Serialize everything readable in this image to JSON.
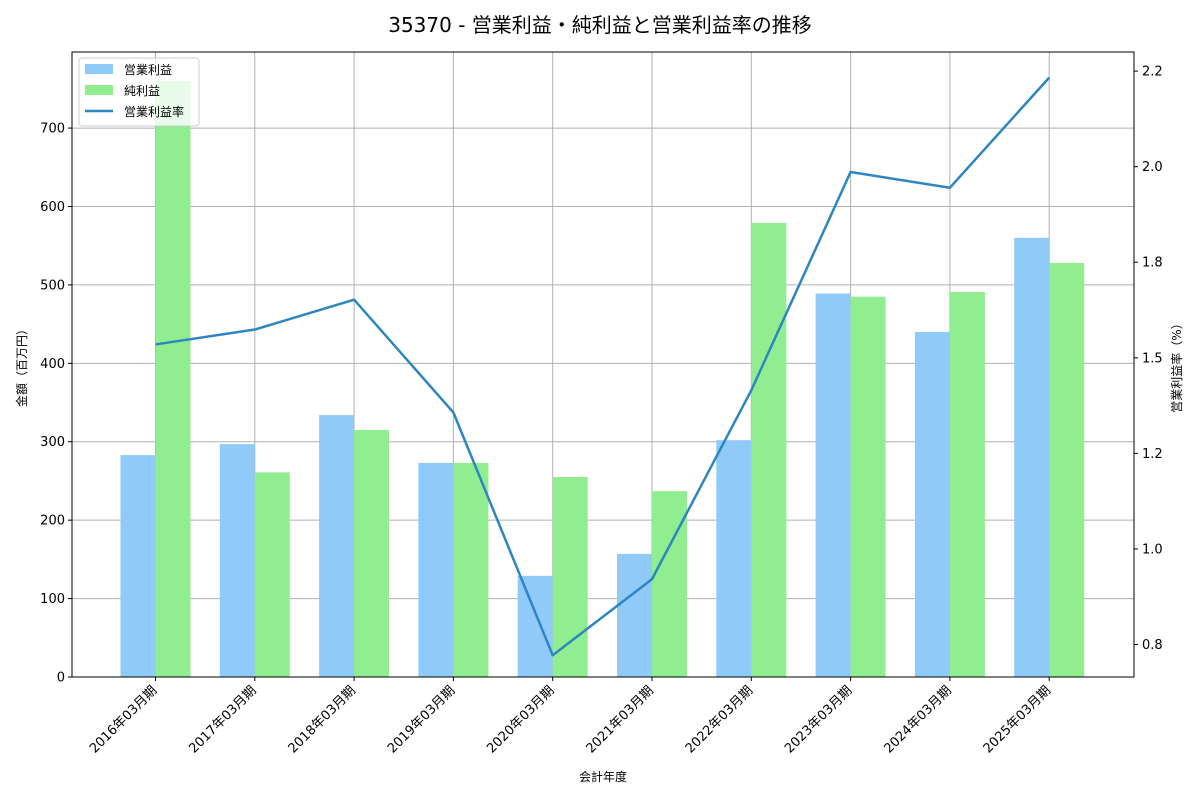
{
  "chart_data": {
    "type": "bar",
    "title": "35370 - 営業利益・純利益と営業利益率の推移",
    "xlabel": "会計年度",
    "ylabel": "金額（百万円）",
    "y2label": "営業利益率（%）",
    "categories": [
      "2016年03月期",
      "2017年03月期",
      "2018年03月期",
      "2019年03月期",
      "2020年03月期",
      "2021年03月期",
      "2022年03月期",
      "2023年03月期",
      "2024年03月期",
      "2025年03月期"
    ],
    "series": [
      {
        "name": "営業利益",
        "type": "bar",
        "axis": "left",
        "color": "#90caf9",
        "values": [
          283,
          297,
          334,
          273,
          129,
          157,
          302,
          489,
          440,
          560
        ]
      },
      {
        "name": "純利益",
        "type": "bar",
        "axis": "left",
        "color": "#90ee90",
        "values": [
          760,
          261,
          315,
          273,
          255,
          237,
          579,
          485,
          491,
          528
        ]
      },
      {
        "name": "営業利益率",
        "type": "line",
        "axis": "right",
        "color": "#2e86c1",
        "values": [
          1.535,
          1.574,
          1.652,
          1.357,
          0.722,
          0.921,
          1.415,
          1.986,
          1.945,
          2.233
        ]
      }
    ],
    "ylim": [
      0,
      797
    ],
    "y2lim": [
      0.665,
      2.3
    ],
    "yticks": [
      0,
      100,
      200,
      300,
      400,
      500,
      600,
      700
    ],
    "y2ticks": [
      0.75,
      1.0,
      1.25,
      1.5,
      1.75,
      2.0,
      2.25
    ],
    "y2ticklabels": [
      "0.8",
      "1.0",
      "1.2",
      "1.5",
      "1.8",
      "2.0",
      "2.2"
    ],
    "grid": true,
    "legend_position": "upper left"
  }
}
